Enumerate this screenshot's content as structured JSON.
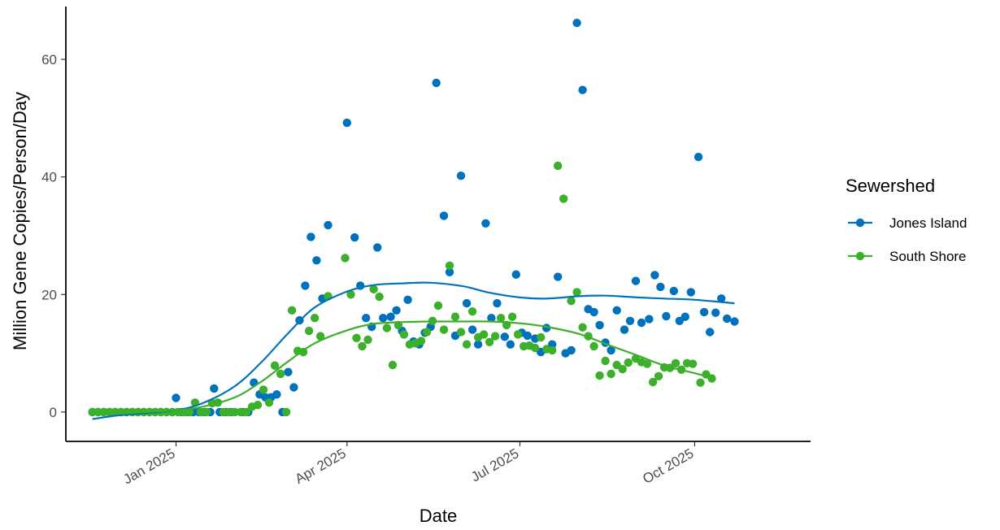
{
  "chart_data": {
    "type": "scatter",
    "title": "",
    "xlabel": "Date",
    "ylabel": "Million Gene Copies/Person/Day",
    "x_scale": "date",
    "xlim": [
      "2024-11-04",
      "2025-12-01"
    ],
    "ylim": [
      -5,
      69
    ],
    "x_ticks": [
      {
        "date": "2025-01-01",
        "label": "Jan 2025"
      },
      {
        "date": "2025-04-01",
        "label": "Apr 2025"
      },
      {
        "date": "2025-07-01",
        "label": "Jul 2025"
      },
      {
        "date": "2025-10-01",
        "label": "Oct 2025"
      }
    ],
    "y_ticks": [
      0,
      20,
      40,
      60
    ],
    "grid": false,
    "legend": {
      "title": "Sewershed",
      "position": "right"
    },
    "series": [
      {
        "name": "Jones Island",
        "color": "#0072BD",
        "points": [
          [
            "2024-11-18",
            0
          ],
          [
            "2024-11-21",
            0
          ],
          [
            "2024-11-24",
            0
          ],
          [
            "2024-11-27",
            0
          ],
          [
            "2024-11-30",
            0
          ],
          [
            "2024-12-03",
            0
          ],
          [
            "2024-12-06",
            0
          ],
          [
            "2024-12-09",
            0
          ],
          [
            "2024-12-12",
            0
          ],
          [
            "2024-12-15",
            0
          ],
          [
            "2024-12-18",
            0
          ],
          [
            "2024-12-21",
            0
          ],
          [
            "2024-12-24",
            0
          ],
          [
            "2024-12-27",
            0
          ],
          [
            "2024-12-30",
            0
          ],
          [
            "2025-01-01",
            2.4
          ],
          [
            "2025-01-04",
            0
          ],
          [
            "2025-01-07",
            0
          ],
          [
            "2025-01-10",
            0
          ],
          [
            "2025-01-13",
            0
          ],
          [
            "2025-01-16",
            0
          ],
          [
            "2025-01-19",
            0
          ],
          [
            "2025-01-21",
            4
          ],
          [
            "2025-01-24",
            0
          ],
          [
            "2025-01-27",
            0
          ],
          [
            "2025-01-30",
            0
          ],
          [
            "2025-02-05",
            0
          ],
          [
            "2025-02-08",
            0
          ],
          [
            "2025-02-11",
            5
          ],
          [
            "2025-02-14",
            3
          ],
          [
            "2025-02-17",
            2.5
          ],
          [
            "2025-02-20",
            2.5
          ],
          [
            "2025-02-23",
            3
          ],
          [
            "2025-02-26",
            0
          ],
          [
            "2025-03-01",
            6.8
          ],
          [
            "2025-03-04",
            4.2
          ],
          [
            "2025-03-07",
            15.6
          ],
          [
            "2025-03-10",
            21.5
          ],
          [
            "2025-03-13",
            29.8
          ],
          [
            "2025-03-16",
            25.8
          ],
          [
            "2025-03-19",
            19.3
          ],
          [
            "2025-03-22",
            31.8
          ],
          [
            "2025-04-01",
            49.2
          ],
          [
            "2025-04-05",
            29.7
          ],
          [
            "2025-04-08",
            21.5
          ],
          [
            "2025-04-11",
            16
          ],
          [
            "2025-04-14",
            14.5
          ],
          [
            "2025-04-17",
            28
          ],
          [
            "2025-04-20",
            16
          ],
          [
            "2025-04-24",
            16.2
          ],
          [
            "2025-04-27",
            17.3
          ],
          [
            "2025-04-30",
            13.8
          ],
          [
            "2025-05-03",
            19.1
          ],
          [
            "2025-05-06",
            12
          ],
          [
            "2025-05-09",
            11.5
          ],
          [
            "2025-05-12",
            13.5
          ],
          [
            "2025-05-15",
            14.5
          ],
          [
            "2025-05-18",
            56
          ],
          [
            "2025-05-22",
            33.4
          ],
          [
            "2025-05-25",
            23.8
          ],
          [
            "2025-05-28",
            13
          ],
          [
            "2025-05-31",
            40.2
          ],
          [
            "2025-06-03",
            18.5
          ],
          [
            "2025-06-06",
            14
          ],
          [
            "2025-06-09",
            11.5
          ],
          [
            "2025-06-13",
            32.1
          ],
          [
            "2025-06-16",
            16
          ],
          [
            "2025-06-19",
            18.5
          ],
          [
            "2025-06-23",
            12.8
          ],
          [
            "2025-06-26",
            11.5
          ],
          [
            "2025-06-29",
            23.4
          ],
          [
            "2025-07-02",
            13.5
          ],
          [
            "2025-07-05",
            13
          ],
          [
            "2025-07-09",
            12.5
          ],
          [
            "2025-07-12",
            10.2
          ],
          [
            "2025-07-15",
            14.3
          ],
          [
            "2025-07-18",
            11.5
          ],
          [
            "2025-07-21",
            23
          ],
          [
            "2025-07-25",
            10
          ],
          [
            "2025-07-28",
            10.5
          ],
          [
            "2025-07-31",
            66.2
          ],
          [
            "2025-08-03",
            54.8
          ],
          [
            "2025-08-06",
            17.5
          ],
          [
            "2025-08-09",
            17
          ],
          [
            "2025-08-12",
            14.8
          ],
          [
            "2025-08-15",
            11.8
          ],
          [
            "2025-08-18",
            10.5
          ],
          [
            "2025-08-21",
            17.3
          ],
          [
            "2025-08-25",
            14
          ],
          [
            "2025-08-28",
            15.5
          ],
          [
            "2025-08-31",
            22.3
          ],
          [
            "2025-09-03",
            15.2
          ],
          [
            "2025-09-07",
            15.8
          ],
          [
            "2025-09-10",
            23.3
          ],
          [
            "2025-09-13",
            21.3
          ],
          [
            "2025-09-16",
            16.3
          ],
          [
            "2025-09-20",
            20.6
          ],
          [
            "2025-09-23",
            15.5
          ],
          [
            "2025-09-26",
            16.2
          ],
          [
            "2025-09-29",
            20.4
          ],
          [
            "2025-10-03",
            43.4
          ],
          [
            "2025-10-06",
            17
          ],
          [
            "2025-10-09",
            13.6
          ],
          [
            "2025-10-12",
            16.9
          ],
          [
            "2025-10-15",
            19.3
          ],
          [
            "2025-10-18",
            15.9
          ],
          [
            "2025-10-22",
            15.4
          ]
        ],
        "trend": [
          [
            "2024-11-18",
            -1.2
          ],
          [
            "2024-12-01",
            -0.6
          ],
          [
            "2024-12-15",
            -0.2
          ],
          [
            "2025-01-01",
            0.3
          ],
          [
            "2025-01-15",
            1.5
          ],
          [
            "2025-02-01",
            4.4
          ],
          [
            "2025-02-15",
            8.5
          ],
          [
            "2025-03-01",
            13.4
          ],
          [
            "2025-03-15",
            17.8
          ],
          [
            "2025-04-01",
            20.5
          ],
          [
            "2025-04-15",
            21.6
          ],
          [
            "2025-05-01",
            21.9
          ],
          [
            "2025-05-15",
            22
          ],
          [
            "2025-06-01",
            21.4
          ],
          [
            "2025-06-15",
            20.3
          ],
          [
            "2025-07-01",
            19.5
          ],
          [
            "2025-07-15",
            19.3
          ],
          [
            "2025-08-01",
            19.7
          ],
          [
            "2025-08-15",
            19.8
          ],
          [
            "2025-09-01",
            19.5
          ],
          [
            "2025-09-15",
            19.3
          ],
          [
            "2025-10-01",
            19.1
          ],
          [
            "2025-10-22",
            18.5
          ]
        ]
      },
      {
        "name": "South Shore",
        "color": "#3CAF2B",
        "points": [
          [
            "2024-11-18",
            0
          ],
          [
            "2024-11-21",
            0
          ],
          [
            "2024-11-24",
            0
          ],
          [
            "2024-11-27",
            0
          ],
          [
            "2024-11-30",
            0
          ],
          [
            "2024-12-03",
            0
          ],
          [
            "2024-12-06",
            0
          ],
          [
            "2024-12-09",
            0
          ],
          [
            "2024-12-12",
            0
          ],
          [
            "2024-12-15",
            0
          ],
          [
            "2024-12-18",
            0
          ],
          [
            "2024-12-21",
            0
          ],
          [
            "2024-12-24",
            0
          ],
          [
            "2024-12-27",
            0
          ],
          [
            "2024-12-30",
            0
          ],
          [
            "2025-01-02",
            0
          ],
          [
            "2025-01-05",
            0
          ],
          [
            "2025-01-08",
            0
          ],
          [
            "2025-01-11",
            1.6
          ],
          [
            "2025-01-14",
            0
          ],
          [
            "2025-01-17",
            0
          ],
          [
            "2025-01-20",
            1.5
          ],
          [
            "2025-01-23",
            1.6
          ],
          [
            "2025-01-26",
            0
          ],
          [
            "2025-01-29",
            0
          ],
          [
            "2025-02-01",
            0
          ],
          [
            "2025-02-04",
            0
          ],
          [
            "2025-02-07",
            0
          ],
          [
            "2025-02-10",
            0.9
          ],
          [
            "2025-02-13",
            1.2
          ],
          [
            "2025-02-16",
            3.8
          ],
          [
            "2025-02-19",
            1.6
          ],
          [
            "2025-02-22",
            7.9
          ],
          [
            "2025-02-25",
            6.5
          ],
          [
            "2025-02-28",
            0
          ],
          [
            "2025-03-03",
            17.3
          ],
          [
            "2025-03-06",
            10.4
          ],
          [
            "2025-03-09",
            10.2
          ],
          [
            "2025-03-12",
            13.8
          ],
          [
            "2025-03-15",
            16
          ],
          [
            "2025-03-18",
            12.9
          ],
          [
            "2025-03-22",
            19.7
          ],
          [
            "2025-03-31",
            26.2
          ],
          [
            "2025-04-03",
            20
          ],
          [
            "2025-04-06",
            12.6
          ],
          [
            "2025-04-09",
            11.2
          ],
          [
            "2025-04-12",
            12.3
          ],
          [
            "2025-04-15",
            20.9
          ],
          [
            "2025-04-18",
            19.6
          ],
          [
            "2025-04-22",
            14.3
          ],
          [
            "2025-04-25",
            8
          ],
          [
            "2025-04-28",
            14.8
          ],
          [
            "2025-05-01",
            13.2
          ],
          [
            "2025-05-04",
            11.5
          ],
          [
            "2025-05-07",
            11.7
          ],
          [
            "2025-05-10",
            12.1
          ],
          [
            "2025-05-13",
            13.6
          ],
          [
            "2025-05-16",
            15.5
          ],
          [
            "2025-05-19",
            18.1
          ],
          [
            "2025-05-22",
            14
          ],
          [
            "2025-05-25",
            24.9
          ],
          [
            "2025-05-28",
            16.2
          ],
          [
            "2025-05-31",
            13.6
          ],
          [
            "2025-06-03",
            11.5
          ],
          [
            "2025-06-06",
            17.1
          ],
          [
            "2025-06-09",
            12.7
          ],
          [
            "2025-06-12",
            13.2
          ],
          [
            "2025-06-15",
            11.9
          ],
          [
            "2025-06-18",
            12.9
          ],
          [
            "2025-06-21",
            16
          ],
          [
            "2025-06-24",
            14.8
          ],
          [
            "2025-06-27",
            16.2
          ],
          [
            "2025-06-30",
            13.2
          ],
          [
            "2025-07-03",
            11.2
          ],
          [
            "2025-07-06",
            11.3
          ],
          [
            "2025-07-09",
            10.9
          ],
          [
            "2025-07-12",
            12.7
          ],
          [
            "2025-07-15",
            10.7
          ],
          [
            "2025-07-18",
            10.5
          ],
          [
            "2025-07-21",
            41.9
          ],
          [
            "2025-07-24",
            36.3
          ],
          [
            "2025-07-28",
            18.9
          ],
          [
            "2025-07-31",
            20.4
          ],
          [
            "2025-08-03",
            14.4
          ],
          [
            "2025-08-06",
            12.9
          ],
          [
            "2025-08-09",
            11.2
          ],
          [
            "2025-08-12",
            6.2
          ],
          [
            "2025-08-15",
            8.7
          ],
          [
            "2025-08-18",
            6.5
          ],
          [
            "2025-08-21",
            8
          ],
          [
            "2025-08-24",
            7.3
          ],
          [
            "2025-08-27",
            8.4
          ],
          [
            "2025-08-31",
            9.1
          ],
          [
            "2025-09-03",
            8.5
          ],
          [
            "2025-09-06",
            8.2
          ],
          [
            "2025-09-09",
            5.1
          ],
          [
            "2025-09-12",
            6.1
          ],
          [
            "2025-09-15",
            7.6
          ],
          [
            "2025-09-18",
            7.5
          ],
          [
            "2025-09-21",
            8.3
          ],
          [
            "2025-09-24",
            7.2
          ],
          [
            "2025-09-27",
            8.3
          ],
          [
            "2025-09-30",
            8.2
          ],
          [
            "2025-10-04",
            5
          ],
          [
            "2025-10-07",
            6.4
          ],
          [
            "2025-10-10",
            5.7
          ]
        ],
        "trend": [
          [
            "2024-11-18",
            -0.3
          ],
          [
            "2024-12-01",
            -0.3
          ],
          [
            "2024-12-15",
            0
          ],
          [
            "2025-01-01",
            0.3
          ],
          [
            "2025-01-15",
            0.9
          ],
          [
            "2025-02-01",
            2.5
          ],
          [
            "2025-02-15",
            5.2
          ],
          [
            "2025-03-01",
            8.6
          ],
          [
            "2025-03-15",
            11.7
          ],
          [
            "2025-04-01",
            13.9
          ],
          [
            "2025-04-15",
            15
          ],
          [
            "2025-05-01",
            15.3
          ],
          [
            "2025-05-15",
            15.4
          ],
          [
            "2025-06-01",
            15.4
          ],
          [
            "2025-06-15",
            15.4
          ],
          [
            "2025-07-01",
            15.1
          ],
          [
            "2025-07-15",
            14.5
          ],
          [
            "2025-08-01",
            13.3
          ],
          [
            "2025-08-15",
            11.6
          ],
          [
            "2025-09-01",
            9.6
          ],
          [
            "2025-09-15",
            7.9
          ],
          [
            "2025-10-01",
            6.6
          ],
          [
            "2025-10-10",
            5.8
          ]
        ]
      }
    ]
  }
}
